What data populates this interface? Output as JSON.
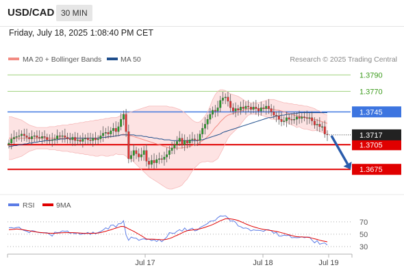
{
  "header": {
    "symbol": "USD/CAD",
    "timeframe": "30 MIN",
    "datetime": "Friday, July 18, 2025 1:08:40 PM CET"
  },
  "legend": {
    "ma20": {
      "label": "MA 20 + Bollinger Bands",
      "color": "#f28b82"
    },
    "ma50": {
      "label": "MA 50",
      "color": "#1f4e8c"
    },
    "rsi": {
      "label": "RSI",
      "color": "#5b7ce6"
    },
    "ma9": {
      "label": "9MA",
      "color": "#e00000"
    }
  },
  "credit": "Research © 2025 Trading Central",
  "colors": {
    "up": "#2a9a2a",
    "down": "#e03030",
    "resistance": "#9ed17c",
    "pivot": "#3d75e0",
    "support": "#e00000",
    "arrow": "#2a5bab",
    "band": "#fde3e3"
  },
  "chart_data": [
    {
      "type": "candlestick",
      "ylim": [
        1.3646,
        1.3802
      ],
      "x_labels": [
        "Jul 17",
        "Jul 18",
        "Jul 19"
      ],
      "levels": [
        {
          "value": 1.379,
          "label": "1.3790",
          "kind": "resistance"
        },
        {
          "value": 1.377,
          "label": "1.3770",
          "kind": "resistance"
        },
        {
          "value": 1.3745,
          "label": "1.3745",
          "kind": "pivot"
        },
        {
          "value": 1.3705,
          "label": "1.3705",
          "kind": "support"
        },
        {
          "value": 1.3675,
          "label": "1.3675",
          "kind": "support"
        }
      ],
      "last_price": {
        "value": 1.3717,
        "label": "1.3717"
      },
      "forecast": {
        "from": 1.3716,
        "to": 1.3675
      },
      "close": [
        1.3707,
        1.3712,
        1.3714,
        1.3715,
        1.3716,
        1.3718,
        1.3716,
        1.3714,
        1.3712,
        1.3715,
        1.3716,
        1.3714,
        1.3713,
        1.3715,
        1.3714,
        1.3711,
        1.371,
        1.3711,
        1.3712,
        1.3716,
        1.3715,
        1.3716,
        1.3714,
        1.3712,
        1.3711,
        1.3714,
        1.371,
        1.3711,
        1.3709,
        1.3712,
        1.3713,
        1.3711,
        1.371,
        1.3713,
        1.3711,
        1.3712,
        1.3716,
        1.3719,
        1.372,
        1.3718,
        1.3722,
        1.3725,
        1.3721,
        1.3727,
        1.3736,
        1.3742,
        1.3721,
        1.3688,
        1.3692,
        1.3698,
        1.3694,
        1.369,
        1.3693,
        1.3698,
        1.3685,
        1.3681,
        1.3686,
        1.3683,
        1.3687,
        1.3688,
        1.3687,
        1.369,
        1.3693,
        1.3698,
        1.3701,
        1.3705,
        1.3709,
        1.3713,
        1.3705,
        1.371,
        1.3707,
        1.3711,
        1.3712,
        1.3711,
        1.371,
        1.3718,
        1.3725,
        1.373,
        1.3736,
        1.3742,
        1.3747,
        1.3746,
        1.375,
        1.3759,
        1.3762,
        1.3763,
        1.3758,
        1.375,
        1.3746,
        1.3749,
        1.3747,
        1.3751,
        1.3749,
        1.3752,
        1.3751,
        1.3748,
        1.3751,
        1.3749,
        1.3746,
        1.375,
        1.3749,
        1.3752,
        1.3749,
        1.3745,
        1.3741,
        1.374,
        1.3736,
        1.3733,
        1.3734,
        1.3738,
        1.3736,
        1.3735,
        1.3736,
        1.3739,
        1.3737,
        1.3739,
        1.3738,
        1.3737,
        1.3738,
        1.3734,
        1.3729,
        1.373,
        1.3727,
        1.3727,
        1.3718,
        1.3717
      ],
      "bollinger_upper": [
        1.3739,
        1.3739,
        1.3738,
        1.3737,
        1.3736,
        1.3735,
        1.3733,
        1.3731,
        1.3729,
        1.3728,
        1.3727,
        1.3726,
        1.3726,
        1.3726,
        1.3726,
        1.3726,
        1.3727,
        1.3727,
        1.3727,
        1.3728,
        1.3728,
        1.3729,
        1.3729,
        1.3729,
        1.373,
        1.373,
        1.3731,
        1.3731,
        1.3732,
        1.3732,
        1.3733,
        1.3733,
        1.3734,
        1.3734,
        1.3735,
        1.3735,
        1.3736,
        1.3736,
        1.3737,
        1.3737,
        1.3738,
        1.3738,
        1.3738,
        1.3739,
        1.3741,
        1.3743,
        1.3743,
        1.3744,
        1.3745,
        1.3746,
        1.3747,
        1.3748,
        1.3749,
        1.375,
        1.3751,
        1.3752,
        1.3752,
        1.3752,
        1.3752,
        1.3752,
        1.3752,
        1.3752,
        1.3752,
        1.3751,
        1.3751,
        1.375,
        1.3749,
        1.3748,
        1.3746,
        1.3744,
        1.3741,
        1.3738,
        1.3735,
        1.3733,
        1.3732,
        1.3733,
        1.3736,
        1.374,
        1.3745,
        1.3752,
        1.376,
        1.3766,
        1.377,
        1.3772,
        1.3772,
        1.3771,
        1.3769,
        1.3767,
        1.3766,
        1.3765,
        1.3764,
        1.3762,
        1.376,
        1.3758,
        1.3757,
        1.3756,
        1.3756,
        1.3756,
        1.3756,
        1.3757,
        1.3758,
        1.3759,
        1.376,
        1.376,
        1.376,
        1.3759,
        1.3758,
        1.3757,
        1.3756,
        1.3756,
        1.3755,
        1.3755,
        1.3754,
        1.3754,
        1.3753,
        1.3753,
        1.3752,
        1.3752,
        1.3751,
        1.375,
        1.3749,
        1.3747,
        1.3746,
        1.3744,
        1.3742,
        1.3741
      ],
      "ma20": [
        1.3713,
        1.3713,
        1.3713,
        1.3713,
        1.3713,
        1.3713,
        1.3713,
        1.3713,
        1.3713,
        1.3713,
        1.3713,
        1.3713,
        1.3713,
        1.3713,
        1.3713,
        1.3713,
        1.3713,
        1.3713,
        1.3713,
        1.3713,
        1.3713,
        1.3713,
        1.3713,
        1.3713,
        1.3713,
        1.3713,
        1.3713,
        1.3713,
        1.3713,
        1.3713,
        1.3713,
        1.3713,
        1.3713,
        1.3713,
        1.3713,
        1.3713,
        1.3714,
        1.3714,
        1.3714,
        1.3714,
        1.3715,
        1.3715,
        1.3716,
        1.3716,
        1.3717,
        1.3718,
        1.3717,
        1.3716,
        1.3716,
        1.3715,
        1.3714,
        1.3713,
        1.3712,
        1.3711,
        1.371,
        1.3709,
        1.3708,
        1.3707,
        1.3706,
        1.3705,
        1.3704,
        1.3703,
        1.3702,
        1.3701,
        1.3701,
        1.3701,
        1.3701,
        1.3701,
        1.3701,
        1.3702,
        1.3702,
        1.3703,
        1.3704,
        1.3705,
        1.3706,
        1.3708,
        1.371,
        1.3712,
        1.3715,
        1.3718,
        1.3722,
        1.3726,
        1.3729,
        1.3733,
        1.3736,
        1.3739,
        1.3741,
        1.3742,
        1.3743,
        1.3744,
        1.3745,
        1.3746,
        1.3747,
        1.3748,
        1.3749,
        1.3749,
        1.3749,
        1.3749,
        1.3749,
        1.3749,
        1.3749,
        1.3749,
        1.3749,
        1.3748,
        1.3748,
        1.3747,
        1.3747,
        1.3746,
        1.3745,
        1.3744,
        1.3743,
        1.3742,
        1.3741,
        1.374,
        1.374,
        1.3739,
        1.3738,
        1.3738,
        1.3737,
        1.3736,
        1.3736,
        1.3735,
        1.3734,
        1.3733,
        1.3732,
        1.3731
      ],
      "bollinger_lower": [
        1.3687,
        1.3687,
        1.3688,
        1.3689,
        1.369,
        1.3691,
        1.3693,
        1.3695,
        1.3697,
        1.3698,
        1.3699,
        1.37,
        1.37,
        1.37,
        1.37,
        1.37,
        1.3699,
        1.3699,
        1.3699,
        1.3698,
        1.3698,
        1.3697,
        1.3697,
        1.3697,
        1.3696,
        1.3696,
        1.3695,
        1.3695,
        1.3694,
        1.3694,
        1.3693,
        1.3693,
        1.3692,
        1.3692,
        1.3691,
        1.3691,
        1.3692,
        1.3692,
        1.3691,
        1.3691,
        1.3692,
        1.3692,
        1.3694,
        1.3693,
        1.3693,
        1.3693,
        1.3691,
        1.3688,
        1.3687,
        1.3684,
        1.3681,
        1.3678,
        1.3675,
        1.3672,
        1.3669,
        1.3666,
        1.3664,
        1.3662,
        1.366,
        1.3658,
        1.3656,
        1.3654,
        1.3652,
        1.3651,
        1.3651,
        1.3652,
        1.3653,
        1.3654,
        1.3656,
        1.366,
        1.3663,
        1.3668,
        1.3673,
        1.3677,
        1.368,
        1.3683,
        1.3684,
        1.3684,
        1.3685,
        1.3684,
        1.3684,
        1.3686,
        1.3688,
        1.3694,
        1.37,
        1.3707,
        1.3713,
        1.3717,
        1.372,
        1.3723,
        1.3726,
        1.373,
        1.3734,
        1.3738,
        1.3741,
        1.3742,
        1.3742,
        1.3742,
        1.3742,
        1.3741,
        1.374,
        1.3739,
        1.3738,
        1.3736,
        1.3736,
        1.3735,
        1.3736,
        1.3735,
        1.3734,
        1.3732,
        1.3731,
        1.3729,
        1.3728,
        1.3726,
        1.3727,
        1.3725,
        1.3724,
        1.3724,
        1.3723,
        1.3722,
        1.3722,
        1.3723,
        1.3721,
        1.372,
        1.372,
        1.372
      ],
      "ma50": [
        1.3703,
        1.3703,
        1.3704,
        1.3704,
        1.3705,
        1.3705,
        1.3706,
        1.3706,
        1.3707,
        1.3707,
        1.3708,
        1.3708,
        1.3709,
        1.3709,
        1.371,
        1.371,
        1.371,
        1.3711,
        1.3711,
        1.3711,
        1.3712,
        1.3712,
        1.3712,
        1.3713,
        1.3713,
        1.3713,
        1.3713,
        1.3713,
        1.3713,
        1.3713,
        1.3713,
        1.3713,
        1.3713,
        1.3713,
        1.3713,
        1.3713,
        1.3714,
        1.3714,
        1.3714,
        1.3715,
        1.3715,
        1.3715,
        1.3716,
        1.3716,
        1.3717,
        1.3717,
        1.3717,
        1.3717,
        1.3717,
        1.3717,
        1.3716,
        1.3716,
        1.3716,
        1.3715,
        1.3715,
        1.3714,
        1.3714,
        1.3713,
        1.3713,
        1.3712,
        1.3712,
        1.3711,
        1.3711,
        1.3711,
        1.371,
        1.371,
        1.371,
        1.371,
        1.371,
        1.371,
        1.371,
        1.371,
        1.371,
        1.371,
        1.371,
        1.3711,
        1.3711,
        1.3712,
        1.3713,
        1.3714,
        1.3715,
        1.3716,
        1.3717,
        1.3718,
        1.372,
        1.3721,
        1.3722,
        1.3723,
        1.3724,
        1.3725,
        1.3726,
        1.3727,
        1.3728,
        1.3729,
        1.373,
        1.3731,
        1.3732,
        1.3733,
        1.3734,
        1.3735,
        1.3736,
        1.3737,
        1.3738,
        1.3738,
        1.3739,
        1.374,
        1.374,
        1.3741,
        1.3741,
        1.3742,
        1.3742,
        1.3743,
        1.3743,
        1.3743,
        1.3744,
        1.3744,
        1.3744,
        1.3744,
        1.3744,
        1.3744,
        1.3744,
        1.3744,
        1.3744,
        1.3744,
        1.3744,
        1.3744
      ]
    },
    {
      "type": "line",
      "ylim": [
        20,
        82
      ],
      "y_ticks": [
        70,
        50,
        30
      ],
      "rsi": [
        60.4,
        60.6,
        59.7,
        60.9,
        61.3,
        57.9,
        56.0,
        54.9,
        52.5,
        55.9,
        55.1,
        53.3,
        52.6,
        52.2,
        52.6,
        52.3,
        49.8,
        46.9,
        53.3,
        52.7,
        53.0,
        55.4,
        54.5,
        55.2,
        51.3,
        52.7,
        50.5,
        52.4,
        49.7,
        50.7,
        50.7,
        53.0,
        49.3,
        53.4,
        50.4,
        52.8,
        54.3,
        56.9,
        60.3,
        58.2,
        64.4,
        65.0,
        61.4,
        66.9,
        67.1,
        71.8,
        48.9,
        40.2,
        45.4,
        43.8,
        43.6,
        40.2,
        41.7,
        42.7,
        41.2,
        42.2,
        39.6,
        41.1,
        38.2,
        41.7,
        37.8,
        41.6,
        45.5,
        52.5,
        51.7,
        51.3,
        54.9,
        57.3,
        54.9,
        60.1,
        55.7,
        57.9,
        59.8,
        55.3,
        56.6,
        60.5,
        62.9,
        65.0,
        67.3,
        71.0,
        71.4,
        72.3,
        76.7,
        79.6,
        79.2,
        79.9,
        76.4,
        70.9,
        71.7,
        69.3,
        63.4,
        62.2,
        59.6,
        60.2,
        58.7,
        55.3,
        57.1,
        56.3,
        56.4,
        55.8,
        54.7,
        57.2,
        57.2,
        55.4,
        51.5,
        53.1,
        47.0,
        47.0,
        48.6,
        47.8,
        48.6,
        44.3,
        44.8,
        44.4,
        44.7,
        45.8,
        44.4,
        45.3,
        45.2,
        40.3,
        36.0,
        39.7,
        33.8,
        35.2,
        35.9,
        32.4
      ],
      "ma9": [
        57.2,
        57.6,
        58.0,
        58.4,
        58.1,
        57.6,
        57.0,
        56.2,
        55.5,
        54.8,
        54.2,
        53.5,
        52.9,
        52.5,
        52.1,
        51.8,
        51.6,
        51.5,
        51.6,
        51.8,
        52.1,
        52.4,
        52.5,
        52.6,
        52.5,
        52.5,
        52.3,
        52.1,
        51.9,
        51.6,
        51.4,
        51.3,
        51.4,
        51.5,
        51.7,
        52.0,
        52.7,
        53.7,
        54.8,
        56.0,
        57.1,
        58.5,
        59.9,
        61.2,
        62.6,
        62.5,
        60.9,
        58.6,
        56.7,
        54.6,
        52.3,
        49.9,
        47.6,
        44.9,
        42.3,
        41.9,
        42.0,
        41.9,
        41.6,
        41.3,
        41.0,
        41.2,
        41.9,
        43.0,
        44.5,
        46.5,
        48.2,
        50.1,
        52.2,
        54.2,
        55.6,
        56.3,
        56.9,
        57.4,
        58.0,
        58.8,
        59.9,
        61.1,
        62.6,
        64.0,
        65.6,
        67.5,
        69.6,
        71.7,
        73.3,
        74.9,
        75.2,
        74.7,
        74.1,
        73.2,
        72.0,
        70.4,
        68.6,
        66.6,
        64.9,
        63.4,
        62.1,
        60.8,
        59.6,
        58.6,
        57.8,
        57.1,
        56.5,
        55.9,
        55.2,
        54.4,
        53.5,
        52.4,
        51.3,
        50.1,
        48.9,
        47.8,
        46.9,
        46.0,
        45.7,
        45.6,
        45.4,
        45.1,
        44.7,
        43.6,
        42.6,
        41.6,
        40.3,
        39.3,
        38.5,
        37.7
      ]
    }
  ]
}
